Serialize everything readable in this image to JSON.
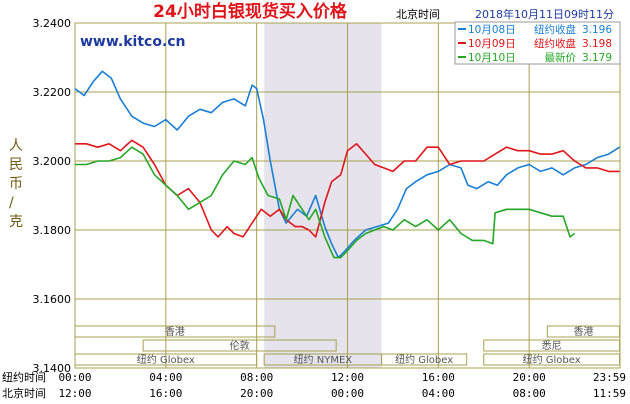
{
  "header": {
    "title": "24小时白银现货买入价格",
    "title_right": "北京时间",
    "timestamp": "2018年10月11日09时11分",
    "watermark": "www.kitco.cn"
  },
  "axis_title": "人民币/克",
  "time_labels": {
    "ny_label": "纽约时间",
    "bj_label": "北京时间",
    "ny_ticks": [
      "00:00",
      "04:00",
      "08:00",
      "12:00",
      "16:00",
      "20:00",
      "23:59"
    ],
    "bj_ticks": [
      "12:00",
      "16:00",
      "20:00",
      "00:00",
      "04:00",
      "08:00",
      "11:59"
    ]
  },
  "markets": [
    {
      "label": "香港",
      "from": 0,
      "to": 8.8,
      "row": 0
    },
    {
      "label": "伦敦",
      "from": 3,
      "to": 11.5,
      "row": 1
    },
    {
      "label": "纽约 Globex",
      "from": 0,
      "to": 8,
      "row": 2
    },
    {
      "label": "纽约 NYMEX",
      "from": 8.33,
      "to": 13.5,
      "row": 2
    },
    {
      "label": "纽约 Globex",
      "from": 13.5,
      "to": 17.25,
      "row": 2
    },
    {
      "label": "纽约 Globex",
      "from": 18,
      "to": 23.98,
      "row": 2
    },
    {
      "label": "悉尼",
      "from": 18,
      "to": 23.98,
      "row": 1
    },
    {
      "label": "香港",
      "from": 20.8,
      "to": 23.98,
      "row": 0
    }
  ],
  "chart_data": {
    "type": "line",
    "title": "24小时白银现货买入价格",
    "ylabel": "人民币/克",
    "xlim": [
      0,
      24
    ],
    "ylim": [
      3.14,
      3.24
    ],
    "yticks": [
      "3.1400",
      "3.1600",
      "3.1800",
      "3.2000",
      "3.2200",
      "3.2400"
    ],
    "highlight_band": [
      8.33,
      13.5
    ],
    "grid": true,
    "legend": [
      {
        "date": "10月08日",
        "label": "纽约收盘",
        "value": "3.196",
        "color": "#1a7fd4"
      },
      {
        "date": "10月09日",
        "label": "纽约收盘",
        "value": "3.198",
        "color": "#e0151b"
      },
      {
        "date": "10月10日",
        "label": "最新价",
        "value": "3.179",
        "color": "#26a626"
      }
    ],
    "series": [
      {
        "name": "10月08日",
        "color": "#1a7fd4",
        "points": [
          [
            0,
            3.221
          ],
          [
            0.4,
            3.219
          ],
          [
            0.8,
            3.223
          ],
          [
            1.2,
            3.226
          ],
          [
            1.6,
            3.224
          ],
          [
            2.0,
            3.218
          ],
          [
            2.5,
            3.213
          ],
          [
            3.0,
            3.211
          ],
          [
            3.5,
            3.21
          ],
          [
            4.0,
            3.212
          ],
          [
            4.5,
            3.209
          ],
          [
            5.0,
            3.213
          ],
          [
            5.5,
            3.215
          ],
          [
            6.0,
            3.214
          ],
          [
            6.5,
            3.217
          ],
          [
            7.0,
            3.218
          ],
          [
            7.5,
            3.216
          ],
          [
            7.8,
            3.222
          ],
          [
            8.0,
            3.221
          ],
          [
            8.3,
            3.212
          ],
          [
            8.6,
            3.2
          ],
          [
            9.0,
            3.186
          ],
          [
            9.3,
            3.182
          ],
          [
            9.8,
            3.186
          ],
          [
            10.2,
            3.184
          ],
          [
            10.6,
            3.19
          ],
          [
            11.0,
            3.181
          ],
          [
            11.3,
            3.176
          ],
          [
            11.6,
            3.172
          ],
          [
            11.9,
            3.174
          ],
          [
            12.3,
            3.177
          ],
          [
            12.8,
            3.18
          ],
          [
            13.3,
            3.181
          ],
          [
            13.8,
            3.182
          ],
          [
            14.2,
            3.186
          ],
          [
            14.6,
            3.192
          ],
          [
            15.0,
            3.194
          ],
          [
            15.5,
            3.196
          ],
          [
            16.0,
            3.197
          ],
          [
            16.5,
            3.199
          ],
          [
            17.0,
            3.198
          ],
          [
            17.3,
            3.193
          ],
          [
            17.7,
            3.192
          ],
          [
            18.2,
            3.194
          ],
          [
            18.6,
            3.193
          ],
          [
            19.0,
            3.196
          ],
          [
            19.5,
            3.198
          ],
          [
            20.0,
            3.199
          ],
          [
            20.5,
            3.197
          ],
          [
            21.0,
            3.198
          ],
          [
            21.5,
            3.196
          ],
          [
            22.0,
            3.198
          ],
          [
            22.5,
            3.199
          ],
          [
            23.0,
            3.201
          ],
          [
            23.5,
            3.202
          ],
          [
            23.98,
            3.204
          ]
        ]
      },
      {
        "name": "10月09日",
        "color": "#e0151b",
        "points": [
          [
            0,
            3.205
          ],
          [
            0.5,
            3.205
          ],
          [
            1.0,
            3.204
          ],
          [
            1.5,
            3.205
          ],
          [
            2.0,
            3.203
          ],
          [
            2.5,
            3.206
          ],
          [
            3.0,
            3.204
          ],
          [
            3.5,
            3.199
          ],
          [
            4.0,
            3.193
          ],
          [
            4.5,
            3.19
          ],
          [
            5.0,
            3.192
          ],
          [
            5.5,
            3.188
          ],
          [
            6.0,
            3.18
          ],
          [
            6.3,
            3.178
          ],
          [
            6.7,
            3.181
          ],
          [
            7.0,
            3.179
          ],
          [
            7.4,
            3.178
          ],
          [
            7.8,
            3.182
          ],
          [
            8.2,
            3.186
          ],
          [
            8.6,
            3.184
          ],
          [
            9.0,
            3.186
          ],
          [
            9.3,
            3.183
          ],
          [
            9.7,
            3.181
          ],
          [
            10.0,
            3.181
          ],
          [
            10.3,
            3.18
          ],
          [
            10.6,
            3.178
          ],
          [
            11.0,
            3.188
          ],
          [
            11.3,
            3.194
          ],
          [
            11.7,
            3.196
          ],
          [
            12.0,
            3.203
          ],
          [
            12.4,
            3.205
          ],
          [
            12.8,
            3.202
          ],
          [
            13.2,
            3.199
          ],
          [
            13.6,
            3.198
          ],
          [
            14.0,
            3.197
          ],
          [
            14.5,
            3.2
          ],
          [
            15.0,
            3.2
          ],
          [
            15.5,
            3.204
          ],
          [
            16.0,
            3.204
          ],
          [
            16.5,
            3.199
          ],
          [
            17.0,
            3.2
          ],
          [
            17.5,
            3.2
          ],
          [
            18.0,
            3.2
          ],
          [
            18.5,
            3.202
          ],
          [
            19.0,
            3.204
          ],
          [
            19.5,
            3.203
          ],
          [
            20.0,
            3.203
          ],
          [
            20.5,
            3.202
          ],
          [
            21.0,
            3.202
          ],
          [
            21.5,
            3.203
          ],
          [
            22.0,
            3.2
          ],
          [
            22.5,
            3.198
          ],
          [
            23.0,
            3.198
          ],
          [
            23.5,
            3.197
          ],
          [
            23.98,
            3.197
          ]
        ]
      },
      {
        "name": "10月10日",
        "color": "#26a626",
        "points": [
          [
            0,
            3.199
          ],
          [
            0.5,
            3.199
          ],
          [
            1.0,
            3.2
          ],
          [
            1.5,
            3.2
          ],
          [
            2.0,
            3.201
          ],
          [
            2.5,
            3.204
          ],
          [
            3.0,
            3.202
          ],
          [
            3.5,
            3.196
          ],
          [
            4.0,
            3.193
          ],
          [
            4.5,
            3.19
          ],
          [
            5.0,
            3.186
          ],
          [
            5.5,
            3.188
          ],
          [
            6.0,
            3.19
          ],
          [
            6.5,
            3.196
          ],
          [
            7.0,
            3.2
          ],
          [
            7.5,
            3.199
          ],
          [
            7.8,
            3.201
          ],
          [
            8.1,
            3.195
          ],
          [
            8.5,
            3.19
          ],
          [
            9.0,
            3.189
          ],
          [
            9.3,
            3.183
          ],
          [
            9.6,
            3.19
          ],
          [
            10.0,
            3.186
          ],
          [
            10.3,
            3.183
          ],
          [
            10.6,
            3.186
          ],
          [
            11.0,
            3.178
          ],
          [
            11.4,
            3.172
          ],
          [
            11.7,
            3.172
          ],
          [
            12.0,
            3.174
          ],
          [
            12.4,
            3.177
          ],
          [
            12.8,
            3.179
          ],
          [
            13.2,
            3.18
          ],
          [
            13.6,
            3.181
          ],
          [
            14.0,
            3.18
          ],
          [
            14.5,
            3.183
          ],
          [
            15.0,
            3.181
          ],
          [
            15.5,
            3.183
          ],
          [
            16.0,
            3.18
          ],
          [
            16.5,
            3.183
          ],
          [
            17.0,
            3.179
          ],
          [
            17.5,
            3.177
          ],
          [
            18.0,
            3.177
          ],
          [
            18.4,
            3.176
          ],
          [
            18.5,
            3.185
          ],
          [
            19.0,
            3.186
          ],
          [
            19.5,
            3.186
          ],
          [
            20.0,
            3.186
          ],
          [
            20.5,
            3.185
          ],
          [
            21.0,
            3.184
          ],
          [
            21.5,
            3.184
          ],
          [
            21.8,
            3.178
          ],
          [
            22.0,
            3.179
          ]
        ]
      }
    ]
  }
}
